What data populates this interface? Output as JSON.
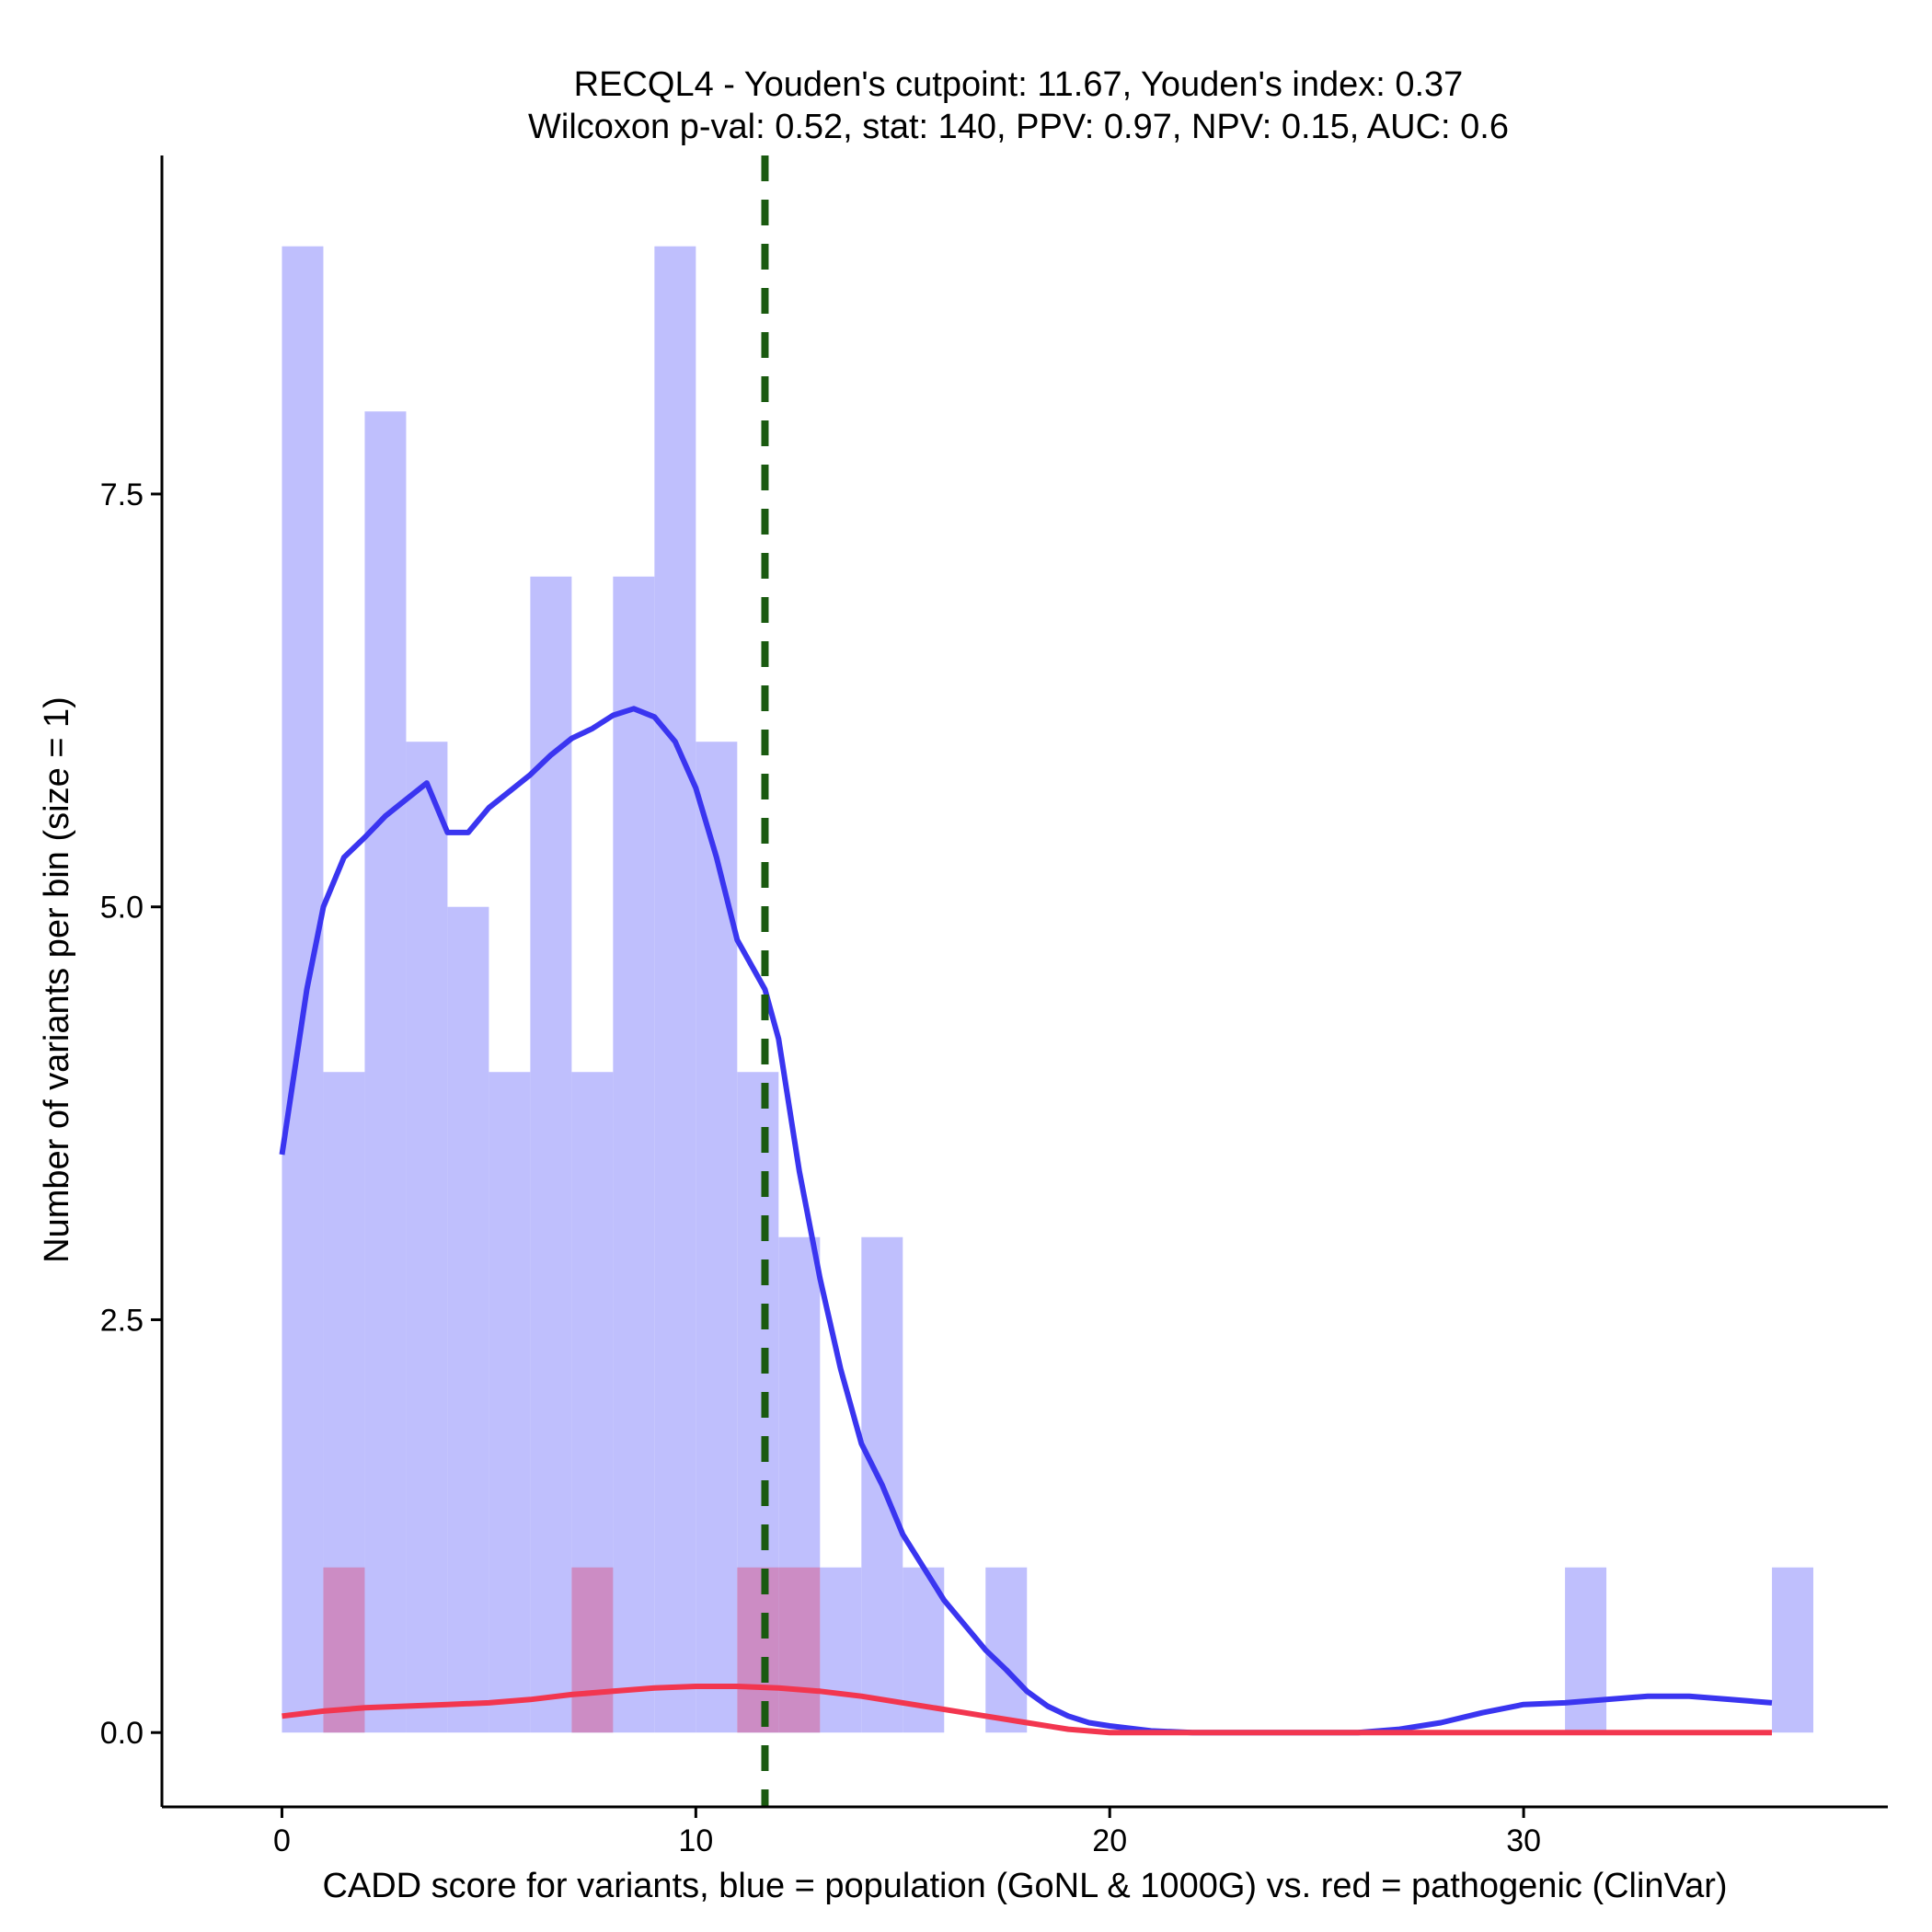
{
  "chart_data": {
    "type": "histogram+density",
    "title_line1": "RECQL4 - Youden's cutpoint: 11.67, Youden's index: 0.37",
    "title_line2": "Wilcoxon p-val: 0.52, stat: 140, PPV: 0.97, NPV: 0.15, AUC: 0.6",
    "xlabel": "CADD score for variants, blue = population (GoNL & 1000G) vs. red = pathogenic (ClinVar)",
    "ylabel": "Number of variants per bin (size = 1)",
    "xlim": [
      -2.9,
      38.8
    ],
    "ylim": [
      -0.45,
      9.55
    ],
    "x_ticks": [
      0,
      10,
      20,
      30
    ],
    "x_tick_labels": [
      "0",
      "10",
      "20",
      "30"
    ],
    "y_ticks": [
      0,
      2.5,
      5,
      7.5
    ],
    "y_tick_labels": [
      "0.0",
      "2.5",
      "5.0",
      "7.5"
    ],
    "cutpoint": 11.67,
    "colors": {
      "population_bar": "#bfbffd",
      "pathogenic_bar": "#cc8cc4",
      "population_line": "#3a35f0",
      "pathogenic_line": "#f2364f",
      "cutpoint_line": "#1a5a10"
    },
    "series": [
      {
        "name": "population (GoNL & 1000G)",
        "bins": [
          {
            "x0": 0,
            "x1": 1,
            "count": 9
          },
          {
            "x0": 1,
            "x1": 2,
            "count": 4
          },
          {
            "x0": 2,
            "x1": 3,
            "count": 8
          },
          {
            "x0": 3,
            "x1": 4,
            "count": 6
          },
          {
            "x0": 4,
            "x1": 5,
            "count": 5
          },
          {
            "x0": 5,
            "x1": 6,
            "count": 4
          },
          {
            "x0": 6,
            "x1": 7,
            "count": 7
          },
          {
            "x0": 7,
            "x1": 8,
            "count": 4
          },
          {
            "x0": 8,
            "x1": 9,
            "count": 7
          },
          {
            "x0": 9,
            "x1": 10,
            "count": 9
          },
          {
            "x0": 10,
            "x1": 11,
            "count": 6
          },
          {
            "x0": 11,
            "x1": 12,
            "count": 4
          },
          {
            "x0": 12,
            "x1": 13,
            "count": 3
          },
          {
            "x0": 13,
            "x1": 14,
            "count": 1
          },
          {
            "x0": 14,
            "x1": 15,
            "count": 3
          },
          {
            "x0": 15,
            "x1": 16,
            "count": 1
          },
          {
            "x0": 17,
            "x1": 18,
            "count": 1
          },
          {
            "x0": 31,
            "x1": 32,
            "count": 1
          },
          {
            "x0": 36,
            "x1": 37,
            "count": 1
          }
        ],
        "density": [
          [
            0,
            3.5
          ],
          [
            0.3,
            4.0
          ],
          [
            0.6,
            4.5
          ],
          [
            1.0,
            5.0
          ],
          [
            1.5,
            5.3
          ],
          [
            2.0,
            5.42
          ],
          [
            2.5,
            5.55
          ],
          [
            3.0,
            5.65
          ],
          [
            3.5,
            5.75
          ],
          [
            4.0,
            5.45
          ],
          [
            4.5,
            5.45
          ],
          [
            5.0,
            5.6
          ],
          [
            5.5,
            5.7
          ],
          [
            6.0,
            5.8
          ],
          [
            6.5,
            5.92
          ],
          [
            7.0,
            6.02
          ],
          [
            7.5,
            6.08
          ],
          [
            8.0,
            6.16
          ],
          [
            8.5,
            6.2
          ],
          [
            9.0,
            6.15
          ],
          [
            9.5,
            6.0
          ],
          [
            10.0,
            5.72
          ],
          [
            10.5,
            5.3
          ],
          [
            11.0,
            4.8
          ],
          [
            11.67,
            4.5
          ],
          [
            12.0,
            4.2
          ],
          [
            12.5,
            3.4
          ],
          [
            13.0,
            2.75
          ],
          [
            13.5,
            2.2
          ],
          [
            14.0,
            1.75
          ],
          [
            14.5,
            1.5
          ],
          [
            15.0,
            1.2
          ],
          [
            15.5,
            1.0
          ],
          [
            16.0,
            0.8
          ],
          [
            16.5,
            0.65
          ],
          [
            17.0,
            0.5
          ],
          [
            17.5,
            0.38
          ],
          [
            18.0,
            0.25
          ],
          [
            18.5,
            0.16
          ],
          [
            19.0,
            0.1
          ],
          [
            19.5,
            0.06
          ],
          [
            20.0,
            0.04
          ],
          [
            21.0,
            0.01
          ],
          [
            22.0,
            0.0
          ],
          [
            24.0,
            0.0
          ],
          [
            26.0,
            0.0
          ],
          [
            27.0,
            0.02
          ],
          [
            28.0,
            0.06
          ],
          [
            29.0,
            0.12
          ],
          [
            30.0,
            0.17
          ],
          [
            31.0,
            0.18
          ],
          [
            32.0,
            0.2
          ],
          [
            33.0,
            0.22
          ],
          [
            34.0,
            0.22
          ],
          [
            35.0,
            0.2
          ],
          [
            36.0,
            0.18
          ]
        ]
      },
      {
        "name": "pathogenic (ClinVar)",
        "bins": [
          {
            "x0": 1,
            "x1": 2,
            "count": 1
          },
          {
            "x0": 7,
            "x1": 8,
            "count": 1
          },
          {
            "x0": 11,
            "x1": 12,
            "count": 1
          },
          {
            "x0": 12,
            "x1": 13,
            "count": 1
          }
        ],
        "density": [
          [
            0,
            0.1
          ],
          [
            1.0,
            0.13
          ],
          [
            2.0,
            0.15
          ],
          [
            3.0,
            0.16
          ],
          [
            4.0,
            0.17
          ],
          [
            5.0,
            0.18
          ],
          [
            6.0,
            0.2
          ],
          [
            7.0,
            0.23
          ],
          [
            8.0,
            0.25
          ],
          [
            9.0,
            0.27
          ],
          [
            10.0,
            0.28
          ],
          [
            11.0,
            0.28
          ],
          [
            12.0,
            0.27
          ],
          [
            13.0,
            0.25
          ],
          [
            14.0,
            0.22
          ],
          [
            15.0,
            0.18
          ],
          [
            16.0,
            0.14
          ],
          [
            17.0,
            0.1
          ],
          [
            18.0,
            0.06
          ],
          [
            19.0,
            0.02
          ],
          [
            20.0,
            0.0
          ],
          [
            22.0,
            0.0
          ],
          [
            25.0,
            0.0
          ],
          [
            28.0,
            0.0
          ],
          [
            31.0,
            0.0
          ],
          [
            34.0,
            0.0
          ],
          [
            36.0,
            0.0
          ]
        ]
      }
    ]
  }
}
